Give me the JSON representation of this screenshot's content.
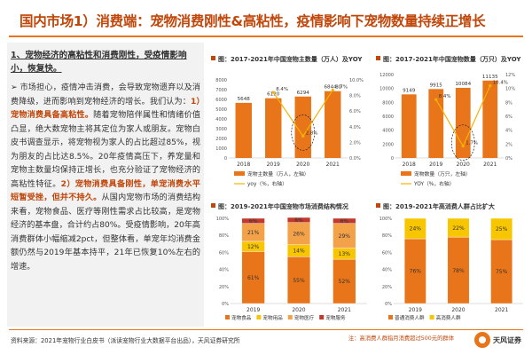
{
  "header": {
    "title": "国内市场1）消费端：宠物消费刚性&高粘性，疫情影响下宠物数量持续正增长"
  },
  "left": {
    "subtitle_a": "1、宠物经济的高粘性和消费刚性，",
    "subtitle_b": "受疫情影响小，恢复快。",
    "p1": "➢ 市场担心，疫情冲击消费，会导致宠物遗弃以及消费降级，进而影响到宠物经济的增长。我们认为：",
    "p1_hl": "1）宠物消费具备高粘性。",
    "p2": "随着宠物陪伴属性和情绪价值凸显，绝大数宠物主将其定位为家人或朋友。宠物白皮书调查显示，将宠物视为家人的占比超过85%，视为朋友的占比达8.5%。20年疫情高压下，养宠量和宠物主数量均保持正增长，也充分验证了宠物经济的高粘性特征。",
    "p2_hl": "2）宠物消费具备刚性，单宠消费水平短暂受挫，但并不持久。",
    "p3": "从国内宠物市场的消费结构来看，宠物食品、医疗等刚性需求占比较高，是宠物经济的基本盘，合计约占80%。受疫情影响，20年高消费群体小幅缩减2pct，但整体看，单宠年均消费金额仍然与2019年基本持平，21年已恢复10%左右的增速。"
  },
  "chart1": {
    "title": "图：2017-2021年中国宠物主数量（万人）及YOY",
    "legend": [
      "宠物主数量（万人，左轴）",
      "yoy（%，右轴）"
    ]
  },
  "chart2": {
    "title": "图：2017-2021年中国宠物数量（万只）及YOY",
    "legend": [
      "宠物数量（万只，左轴）",
      "YOY（%，右轴）"
    ]
  },
  "chart3": {
    "title": "图：2019-2021年中国宠物市场消费结构情况",
    "legend": [
      "宠物食品",
      "宠物用品",
      "宠物医疗",
      "宠物服务"
    ]
  },
  "chart4": {
    "title": "图：2019-2021年高消费人群占比扩大",
    "legend": [
      "普通消费人群",
      "高消费人群"
    ]
  },
  "footer": {
    "source": "资料来源：2021年宠物行业白皮书（派读宠物行业大数据平台出品），天风证券研究所",
    "note": "注：高消费人群指月消费超过500元的群体",
    "logo": "天风证券"
  },
  "chart_data": [
    {
      "type": "bar",
      "title": "图：2017-2021年中国宠物主数量（万人）及YOY",
      "categories": [
        "2018",
        "2019",
        "2020",
        "2021"
      ],
      "series": [
        {
          "name": "宠物主数量（万人，左轴）",
          "values": [
            5648,
            6120,
            6294,
            6844
          ],
          "labels": [
            "5648",
            "6120",
            "6294",
            "6844.0"
          ],
          "axis": "left"
        },
        {
          "name": "yoy（%，右轴）",
          "values": [
            null,
            8.4,
            2.8,
            8.7
          ],
          "labels": [
            "",
            "8.4%",
            "2.8%",
            "8.7%"
          ],
          "axis": "right"
        }
      ],
      "ylim": [
        0,
        8000
      ],
      "yticks": [
        "0",
        "1000",
        "2000",
        "3000",
        "4000",
        "5000",
        "6000",
        "7000",
        "8000"
      ],
      "y2lim": [
        0,
        10
      ],
      "y2ticks": [
        "0.0%",
        "2.0%",
        "4.0%",
        "6.0%",
        "8.0%",
        "10.0%"
      ],
      "colors": {
        "bar": "#e8751a",
        "line": "#f7b200"
      }
    },
    {
      "type": "bar",
      "title": "图：2017-2021年中国宠物数量（万只）及YOY",
      "categories": [
        "2018",
        "2019",
        "2020",
        "2021"
      ],
      "series": [
        {
          "name": "宠物数量（万只，左轴）",
          "values": [
            9149,
            9915,
            10084,
            11135
          ],
          "labels": [
            "9149",
            "9915",
            "10084",
            "11135"
          ],
          "axis": "left"
        },
        {
          "name": "YOY（%，右轴）",
          "values": [
            null,
            8.4,
            1.7,
            10.4
          ],
          "labels": [
            "",
            "8.4%",
            "1.7%",
            "10.4%"
          ],
          "axis": "right"
        }
      ],
      "ylim": [
        0,
        12000
      ],
      "yticks": [
        "0",
        "2000",
        "4000",
        "6000",
        "8000",
        "10000",
        "12000"
      ],
      "y2lim": [
        0,
        12
      ],
      "y2ticks": [
        "0%",
        "2%",
        "4%",
        "6%",
        "8%",
        "10%",
        "12%"
      ],
      "colors": {
        "bar": "#e8751a",
        "line": "#f7b200"
      }
    },
    {
      "type": "bar",
      "stacked": true,
      "title": "图：2019-2021年中国宠物市场消费结构情况",
      "categories": [
        "2019",
        "2020",
        "2021"
      ],
      "series": [
        {
          "name": "宠物食品",
          "values": [
            61,
            55,
            52
          ],
          "color": "#e8751a"
        },
        {
          "name": "宠物用品",
          "values": [
            12,
            14,
            13
          ],
          "color": "#f7c600"
        },
        {
          "name": "宠物医疗",
          "values": [
            21,
            26,
            29
          ],
          "color": "#f4a24a"
        },
        {
          "name": "宠物服务",
          "values": [
            6,
            6,
            6
          ],
          "color": "#c0392b"
        }
      ],
      "ylim": [
        0,
        100
      ],
      "yticks": [
        "0%",
        "20%",
        "40%",
        "60%",
        "80%",
        "100%"
      ]
    },
    {
      "type": "bar",
      "stacked": true,
      "title": "图：2019-2021年高消费人群占比扩大",
      "categories": [
        "2019",
        "2020",
        "2021"
      ],
      "series": [
        {
          "name": "普通消费人群",
          "values": [
            76,
            78,
            75
          ],
          "color": "#e8751a"
        },
        {
          "name": "高消费人群",
          "values": [
            24,
            22,
            25
          ],
          "color": "#f7c600"
        }
      ],
      "ylim": [
        0,
        100
      ],
      "yticks": [
        "0%",
        "20%",
        "40%",
        "60%",
        "80%",
        "100%"
      ]
    }
  ]
}
